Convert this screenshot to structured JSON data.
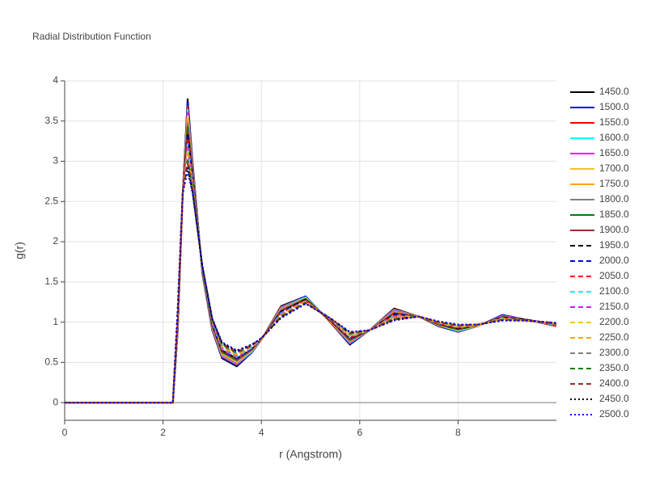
{
  "chart_data": {
    "type": "line",
    "title": "Radial Distribution Function",
    "x_label": "r (Angstrom)",
    "y_label": "g(r)",
    "x": [
      0,
      2.2,
      2.3,
      2.4,
      2.5,
      2.6,
      2.8,
      3.0,
      3.2,
      3.5,
      3.8,
      4.0,
      4.4,
      4.9,
      5.4,
      5.8,
      6.2,
      6.7,
      7.2,
      7.6,
      8.0,
      8.4,
      8.9,
      9.4,
      10
    ],
    "xlim": [
      0,
      10
    ],
    "xticks": [
      0,
      2,
      4,
      6,
      8
    ],
    "ylim": [
      -0.22,
      4
    ],
    "yticks": [
      0,
      0.5,
      1,
      1.5,
      2,
      2.5,
      3,
      3.5,
      4
    ],
    "grid": true,
    "legend": "right",
    "series": [
      {
        "name": "1450.0",
        "color": "#000000",
        "dash": "solid",
        "values": [
          0,
          0,
          0.9,
          2.6,
          3.78,
          3.0,
          1.6,
          0.9,
          0.55,
          0.45,
          0.62,
          0.78,
          1.2,
          1.32,
          1.0,
          0.72,
          0.9,
          1.17,
          1.07,
          0.95,
          0.88,
          0.95,
          1.09,
          1.03,
          0.95
        ]
      },
      {
        "name": "1500.0",
        "color": "#0000ff",
        "dash": "solid",
        "values": [
          0,
          0,
          0.91,
          2.6,
          3.74,
          2.98,
          1.6,
          0.91,
          0.56,
          0.46,
          0.62,
          0.78,
          1.19,
          1.32,
          1.0,
          0.73,
          0.9,
          1.16,
          1.07,
          0.95,
          0.88,
          0.95,
          1.09,
          1.03,
          0.95
        ]
      },
      {
        "name": "1550.0",
        "color": "#ff0000",
        "dash": "solid",
        "values": [
          0,
          0,
          0.93,
          2.6,
          3.69,
          2.96,
          1.61,
          0.91,
          0.57,
          0.47,
          0.63,
          0.78,
          1.19,
          1.31,
          1.0,
          0.74,
          0.9,
          1.16,
          1.07,
          0.96,
          0.89,
          0.95,
          1.08,
          1.03,
          0.95
        ]
      },
      {
        "name": "1600.0",
        "color": "#00ffff",
        "dash": "solid",
        "values": [
          0,
          0,
          0.94,
          2.6,
          3.65,
          2.94,
          1.61,
          0.92,
          0.58,
          0.48,
          0.63,
          0.78,
          1.18,
          1.31,
          1.01,
          0.74,
          0.9,
          1.15,
          1.07,
          0.96,
          0.89,
          0.95,
          1.08,
          1.03,
          0.96
        ]
      },
      {
        "name": "1650.0",
        "color": "#ff00ff",
        "dash": "solid",
        "values": [
          0,
          0,
          0.96,
          2.6,
          3.61,
          2.92,
          1.62,
          0.93,
          0.59,
          0.49,
          0.64,
          0.78,
          1.17,
          1.3,
          1.01,
          0.75,
          0.9,
          1.14,
          1.07,
          0.96,
          0.9,
          0.95,
          1.08,
          1.03,
          0.96
        ]
      },
      {
        "name": "1700.0",
        "color": "#f5c02a",
        "dash": "solid",
        "values": [
          0,
          0,
          0.97,
          2.6,
          3.57,
          2.9,
          1.62,
          0.94,
          0.6,
          0.5,
          0.64,
          0.78,
          1.16,
          1.3,
          1.01,
          0.76,
          0.9,
          1.13,
          1.07,
          0.96,
          0.9,
          0.95,
          1.07,
          1.03,
          0.96
        ]
      },
      {
        "name": "1750.0",
        "color": "#ffa500",
        "dash": "solid",
        "values": [
          0,
          0,
          0.99,
          2.6,
          3.52,
          2.89,
          1.63,
          0.94,
          0.61,
          0.51,
          0.65,
          0.79,
          1.16,
          1.29,
          1.01,
          0.77,
          0.9,
          1.13,
          1.07,
          0.97,
          0.91,
          0.96,
          1.07,
          1.03,
          0.96
        ]
      },
      {
        "name": "1800.0",
        "color": "#808080",
        "dash": "solid",
        "values": [
          0,
          0,
          1.0,
          2.6,
          3.48,
          2.87,
          1.63,
          0.95,
          0.62,
          0.52,
          0.65,
          0.79,
          1.15,
          1.29,
          1.02,
          0.77,
          0.9,
          1.12,
          1.07,
          0.97,
          0.91,
          0.96,
          1.07,
          1.03,
          0.96
        ]
      },
      {
        "name": "1850.0",
        "color": "#008000",
        "dash": "solid",
        "values": [
          0,
          0,
          1.01,
          2.6,
          3.44,
          2.85,
          1.64,
          0.96,
          0.63,
          0.53,
          0.66,
          0.79,
          1.14,
          1.29,
          1.02,
          0.78,
          0.9,
          1.11,
          1.07,
          0.97,
          0.91,
          0.96,
          1.06,
          1.03,
          0.97
        ]
      },
      {
        "name": "1900.0",
        "color": "#a52a2a",
        "dash": "solid",
        "values": [
          0,
          0,
          1.03,
          2.6,
          3.39,
          2.83,
          1.64,
          0.96,
          0.64,
          0.54,
          0.66,
          0.79,
          1.14,
          1.28,
          1.02,
          0.79,
          0.9,
          1.11,
          1.07,
          0.98,
          0.92,
          0.96,
          1.06,
          1.03,
          0.97
        ]
      },
      {
        "name": "1950.0",
        "color": "#000000",
        "dash": "dash",
        "values": [
          0,
          0,
          1.04,
          2.6,
          3.35,
          2.81,
          1.65,
          0.97,
          0.65,
          0.55,
          0.67,
          0.79,
          1.13,
          1.28,
          1.02,
          0.8,
          0.9,
          1.1,
          1.07,
          0.98,
          0.92,
          0.96,
          1.06,
          1.03,
          0.97
        ]
      },
      {
        "name": "2000.0",
        "color": "#0000ff",
        "dash": "dash",
        "values": [
          0,
          0,
          1.06,
          2.6,
          3.31,
          2.79,
          1.65,
          0.98,
          0.65,
          0.55,
          0.67,
          0.79,
          1.12,
          1.27,
          1.03,
          0.8,
          0.9,
          1.09,
          1.07,
          0.98,
          0.93,
          0.96,
          1.05,
          1.02,
          0.97
        ]
      },
      {
        "name": "2050.0",
        "color": "#ff0000",
        "dash": "dash",
        "values": [
          0,
          0,
          1.07,
          2.6,
          3.27,
          2.77,
          1.66,
          0.99,
          0.66,
          0.56,
          0.68,
          0.79,
          1.11,
          1.27,
          1.03,
          0.81,
          0.9,
          1.08,
          1.07,
          0.98,
          0.93,
          0.96,
          1.05,
          1.02,
          0.97
        ]
      },
      {
        "name": "2100.0",
        "color": "#00ffff",
        "dash": "dash",
        "values": [
          0,
          0,
          1.09,
          2.6,
          3.22,
          2.75,
          1.66,
          0.99,
          0.67,
          0.57,
          0.68,
          0.79,
          1.11,
          1.26,
          1.03,
          0.82,
          0.9,
          1.08,
          1.07,
          0.99,
          0.94,
          0.96,
          1.05,
          1.02,
          0.97
        ]
      },
      {
        "name": "2150.0",
        "color": "#ff00ff",
        "dash": "dash",
        "values": [
          0,
          0,
          1.1,
          2.6,
          3.18,
          2.73,
          1.67,
          1.0,
          0.68,
          0.58,
          0.69,
          0.79,
          1.1,
          1.26,
          1.03,
          0.83,
          0.9,
          1.07,
          1.07,
          0.99,
          0.94,
          0.96,
          1.04,
          1.02,
          0.98
        ]
      },
      {
        "name": "2200.0",
        "color": "#f5c02a",
        "dash": "dash",
        "values": [
          0,
          0,
          1.11,
          2.6,
          3.14,
          2.71,
          1.67,
          1.01,
          0.69,
          0.59,
          0.69,
          0.79,
          1.09,
          1.26,
          1.04,
          0.83,
          0.9,
          1.06,
          1.07,
          0.99,
          0.94,
          0.96,
          1.04,
          1.02,
          0.98
        ]
      },
      {
        "name": "2250.0",
        "color": "#ffa500",
        "dash": "dash",
        "values": [
          0,
          0,
          1.13,
          2.6,
          3.09,
          2.7,
          1.68,
          1.01,
          0.7,
          0.6,
          0.7,
          0.8,
          1.09,
          1.25,
          1.04,
          0.84,
          0.9,
          1.06,
          1.07,
          1.0,
          0.95,
          0.97,
          1.04,
          1.02,
          0.98
        ]
      },
      {
        "name": "2300.0",
        "color": "#808080",
        "dash": "dash",
        "values": [
          0,
          0,
          1.14,
          2.6,
          3.05,
          2.68,
          1.68,
          1.02,
          0.71,
          0.61,
          0.7,
          0.8,
          1.08,
          1.25,
          1.04,
          0.85,
          0.9,
          1.05,
          1.07,
          1.0,
          0.95,
          0.97,
          1.03,
          1.02,
          0.98
        ]
      },
      {
        "name": "2350.0",
        "color": "#008000",
        "dash": "dash",
        "values": [
          0,
          0,
          1.16,
          2.6,
          3.01,
          2.66,
          1.69,
          1.03,
          0.72,
          0.62,
          0.71,
          0.8,
          1.07,
          1.24,
          1.04,
          0.86,
          0.9,
          1.04,
          1.07,
          1.0,
          0.96,
          0.97,
          1.03,
          1.02,
          0.98
        ]
      },
      {
        "name": "2400.0",
        "color": "#a52a2a",
        "dash": "dash",
        "values": [
          0,
          0,
          1.17,
          2.6,
          2.97,
          2.64,
          1.69,
          1.04,
          0.73,
          0.63,
          0.71,
          0.8,
          1.06,
          1.24,
          1.05,
          0.87,
          0.9,
          1.03,
          1.07,
          1.0,
          0.96,
          0.97,
          1.03,
          1.02,
          0.99
        ]
      },
      {
        "name": "2450.0",
        "color": "#000000",
        "dash": "dot",
        "values": [
          0,
          0,
          1.19,
          2.6,
          2.92,
          2.62,
          1.7,
          1.04,
          0.74,
          0.64,
          0.72,
          0.8,
          1.06,
          1.23,
          1.05,
          0.87,
          0.9,
          1.03,
          1.07,
          1.01,
          0.97,
          0.97,
          1.02,
          1.02,
          0.99
        ]
      },
      {
        "name": "2500.0",
        "color": "#0000ff",
        "dash": "dot",
        "values": [
          0,
          0,
          1.2,
          2.6,
          2.88,
          2.6,
          1.7,
          1.05,
          0.75,
          0.65,
          0.72,
          0.8,
          1.05,
          1.23,
          1.05,
          0.88,
          0.9,
          1.02,
          1.07,
          1.01,
          0.97,
          0.97,
          1.02,
          1.02,
          0.99
        ]
      }
    ]
  }
}
